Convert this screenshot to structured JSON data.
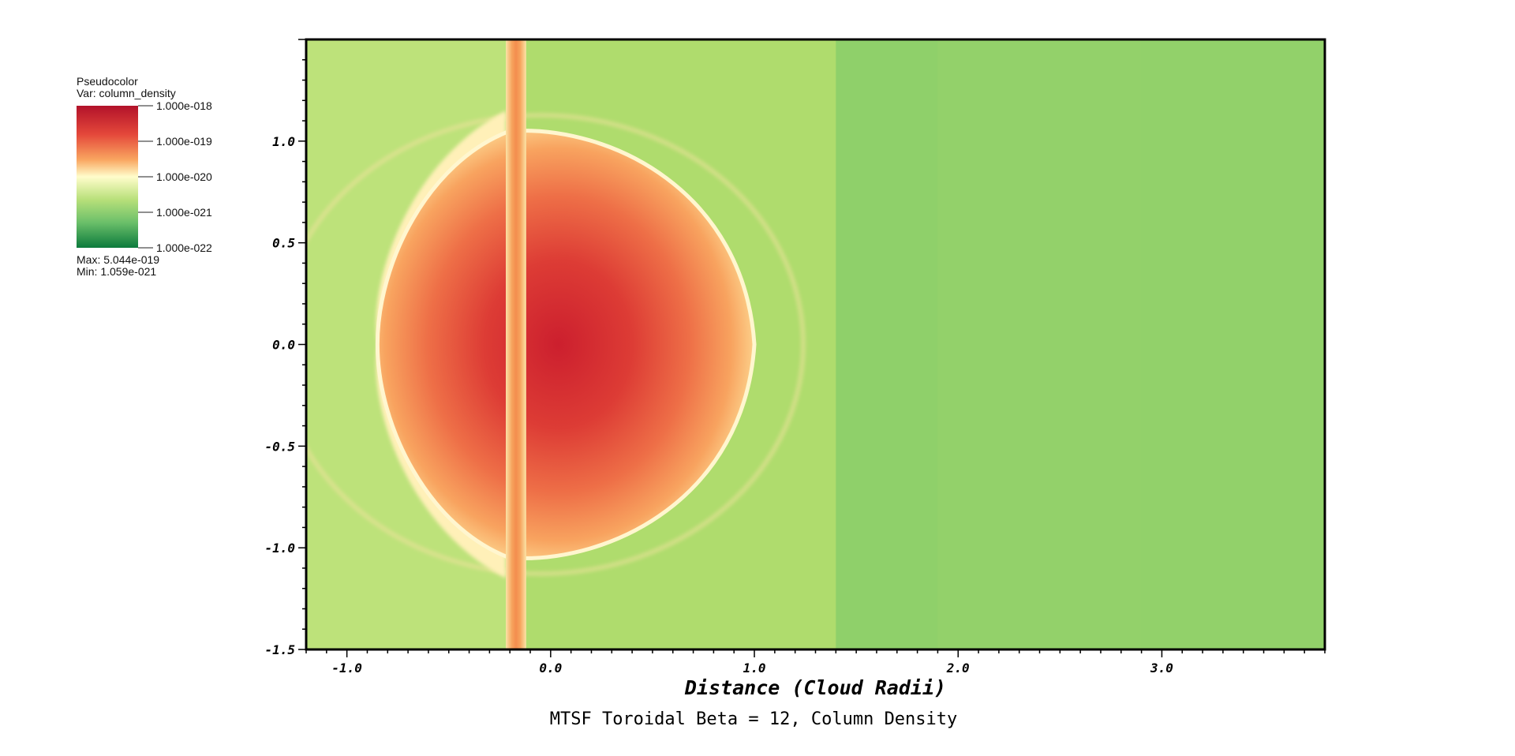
{
  "legend": {
    "type_label": "Pseudocolor",
    "var_label": "Var: column_density",
    "levels": [
      "1.000e-018",
      "1.000e-019",
      "1.000e-020",
      "1.000e-021",
      "1.000e-022"
    ],
    "max_label": "Max:  5.044e-019",
    "min_label": "Min:  1.059e-021",
    "colors": [
      "#b2122a",
      "#e4473a",
      "#f9a660",
      "#fffdcb",
      "#b8e07a",
      "#6cc06a",
      "#0b7a3c"
    ]
  },
  "chart_data": {
    "type": "heatmap",
    "title": "MTSF Toroidal Beta = 12, Column Density",
    "xlabel": "Distance (Cloud Radii)",
    "ylabel": "",
    "xlim": [
      -1.2,
      3.8
    ],
    "ylim": [
      -1.5,
      1.5
    ],
    "xticks": [
      -1.0,
      0.0,
      1.0,
      2.0,
      3.0
    ],
    "xtick_labels": [
      "-1.0",
      "0.0",
      "1.0",
      "2.0",
      "3.0"
    ],
    "yticks": [
      1.0,
      0.5,
      0.0,
      -0.5,
      -1.0,
      -1.5
    ],
    "ytick_labels": [
      "1.0",
      "0.5",
      "0.0",
      "-0.5",
      "-1.0",
      "-1.5"
    ],
    "colorscale": "log",
    "value_max": "5.044e-019",
    "value_min": "1.059e-021",
    "features": {
      "cloud_center": [
        0.0,
        0.0
      ],
      "cloud_left_edge_x": -0.85,
      "cloud_right_edge_x": 1.0,
      "cloud_half_height": 1.05,
      "filament_x": [
        -0.22,
        -0.12
      ],
      "background_step_x": [
        -0.22,
        1.4,
        1.9,
        2.9
      ]
    },
    "background_colors": [
      "#bde27a",
      "#afdc6d",
      "#8fd06a",
      "#93d16a",
      "#92d16a"
    ]
  }
}
